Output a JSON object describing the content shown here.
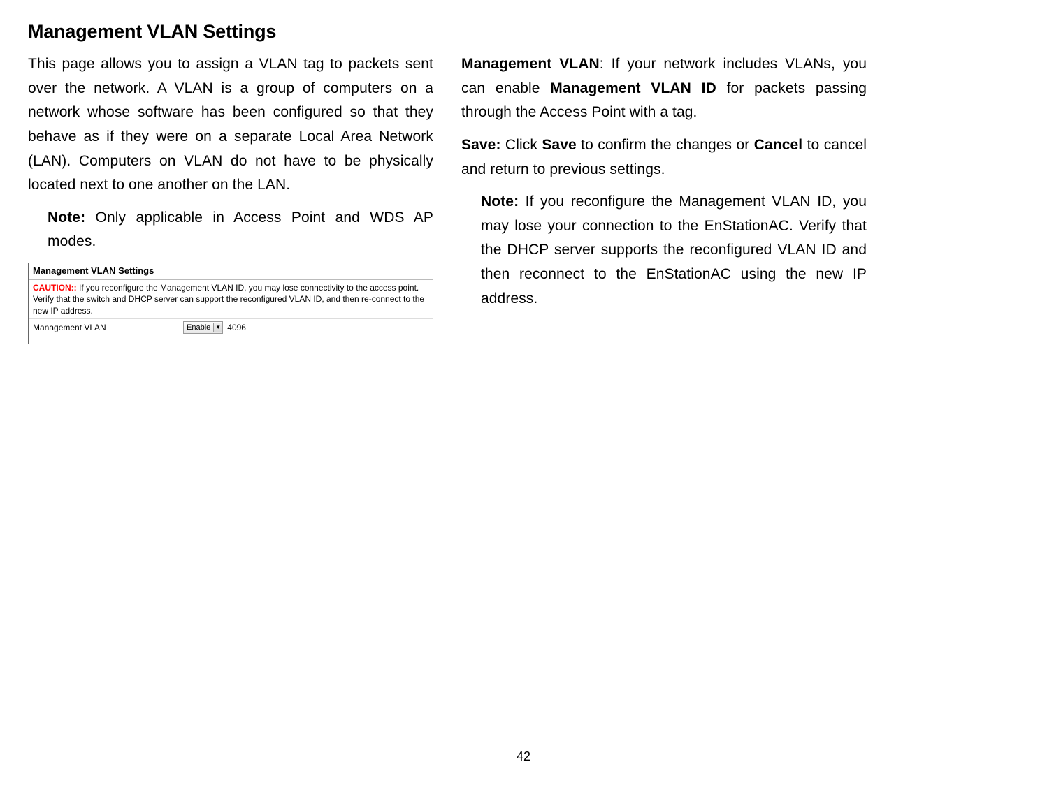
{
  "title": "Management VLAN Settings",
  "leftColumn": {
    "intro": "This page allows you to assign a VLAN tag to packets sent over the network. A VLAN is a group of computers on a network whose software has been configured so that they behave as if they were on a separate Local Area Network (LAN). Computers on VLAN do not have to be physically located next to one another on the LAN.",
    "noteLabel": "Note:",
    "noteText": " Only applicable in Access Point and WDS AP modes."
  },
  "settingsBox": {
    "header": "Management VLAN Settings",
    "cautionLabel": "CAUTION::",
    "cautionText": " If you reconfigure the Management VLAN ID, you may lose connectivity to the access point. Verify that the switch and DHCP server can support the reconfigured VLAN ID, and then re-connect to the new IP address.",
    "fieldLabel": "Management VLAN",
    "dropdownValue": "Enable",
    "vlanId": "4096"
  },
  "rightColumn": {
    "mgmtVlanLabel": "Management VLAN",
    "mgmtVlanPre": ": If your network includes VLANs, you can enable ",
    "mgmtVlanBold": "Management VLAN ID",
    "mgmtVlanPost": " for packets passing through the Access Point with a tag.",
    "saveLabel": "Save:",
    "savePre": " Click ",
    "saveBold1": "Save",
    "saveMid": " to confirm the changes or ",
    "saveBold2": "Cancel",
    "savePost": " to cancel and return to previous settings.",
    "noteLabel": "Note:",
    "noteText": " If you reconfigure the Management VLAN ID, you may lose your connection to the EnStationAC. Verify that the DHCP server supports the reconfigured VLAN ID and then reconnect to the EnStationAC using the new IP address."
  },
  "pageNumber": "42"
}
